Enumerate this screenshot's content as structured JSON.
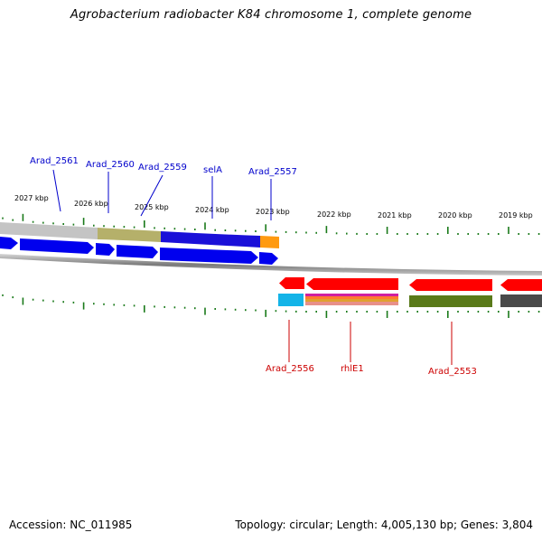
{
  "title": "Agrobacterium radiobacter K84 chromosome 1, complete genome",
  "footer": {
    "accession": "Accession: NC_011985",
    "summary": "Topology: circular; Length: 4,005,130 bp; Genes: 3,804"
  },
  "scale": {
    "ticks": [
      "2027 kbp",
      "2026 kbp",
      "2025 kbp",
      "2024 kbp",
      "2023 kbp",
      "2022 kbp",
      "2021 kbp",
      "2020 kbp",
      "2019 kbp"
    ]
  },
  "genes": {
    "top_labels": [
      "Arad_2561",
      "Arad_2560",
      "Arad_2559",
      "selA",
      "Arad_2557"
    ],
    "bottom_labels": [
      "Arad_2556",
      "rhlE1",
      "Arad_2553"
    ]
  },
  "colors": {
    "forward_gene": "#0000ee",
    "reverse_gene": "#ff0000",
    "label_top": "#0000cc",
    "label_bottom": "#cc0000",
    "tick": "#1a7a1a",
    "backbone": "#808080"
  }
}
